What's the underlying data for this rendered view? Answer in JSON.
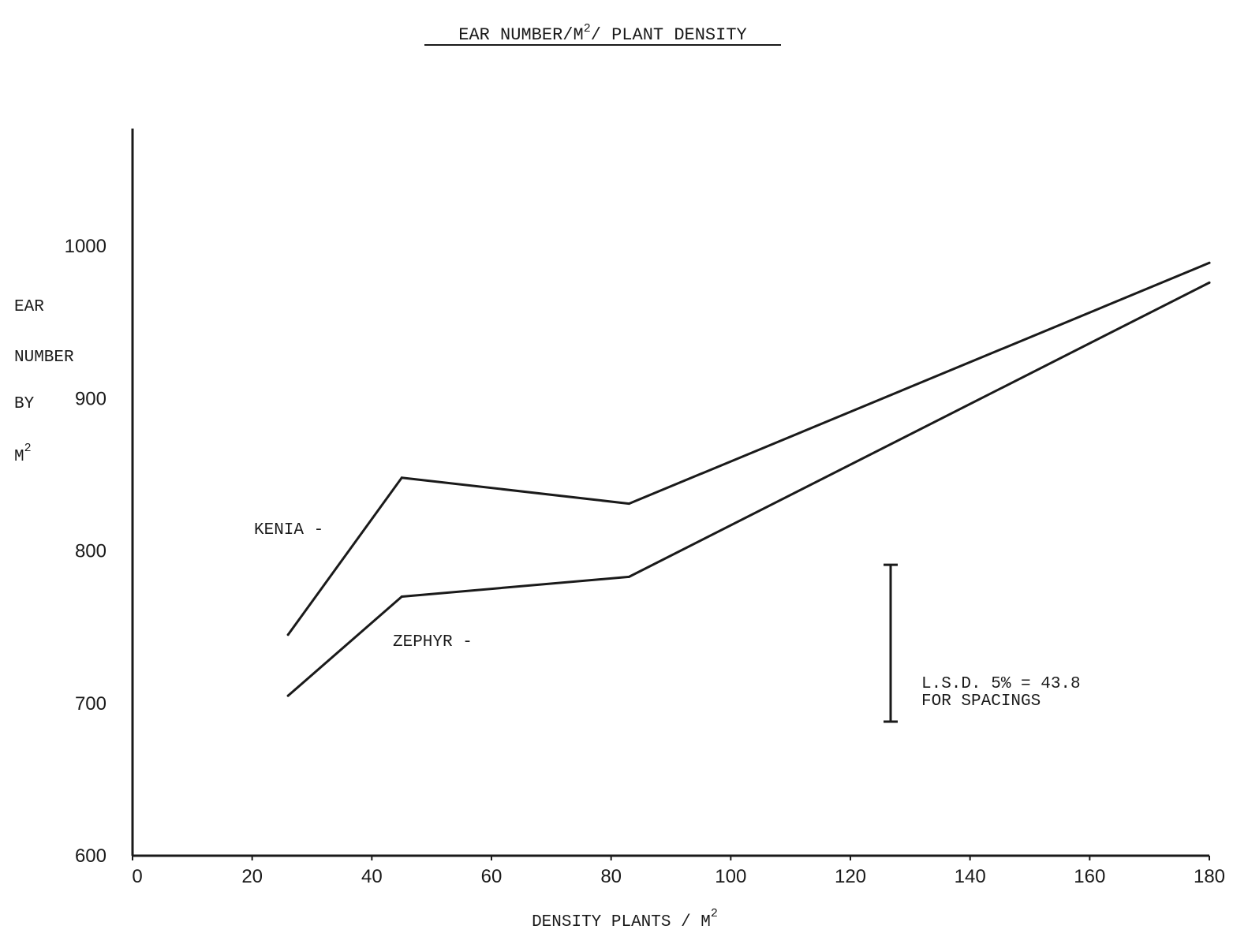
{
  "chart_data": {
    "type": "line",
    "title_parts": [
      "EAR NUMBER/M",
      "2",
      "/ PLANT DENSITY"
    ],
    "xlabel_parts": [
      "DENSITY PLANTS / M",
      "2"
    ],
    "ylabel_lines": [
      "EAR",
      "NUMBER",
      "BY"
    ],
    "ylabel_last": [
      "M",
      "2"
    ],
    "xlim": [
      0,
      180
    ],
    "ylim": [
      600,
      1000
    ],
    "x_ticks": [
      "0",
      "20",
      "40",
      "60",
      "80",
      "100",
      "120",
      "140",
      "160",
      "180"
    ],
    "y_ticks": [
      "600",
      "700",
      "800",
      "900",
      "1000"
    ],
    "grid": false,
    "series": [
      {
        "name": "KENIA -",
        "x": [
          26,
          45,
          83,
          180
        ],
        "y": [
          745,
          848,
          831,
          989
        ]
      },
      {
        "name": "ZEPHYR -",
        "x": [
          26,
          45,
          83,
          180
        ],
        "y": [
          705,
          770,
          783,
          976
        ]
      }
    ],
    "annotation": {
      "lines": [
        "L.S.D. 5% = 43.8",
        "FOR SPACINGS"
      ],
      "value": 43.8
    }
  }
}
